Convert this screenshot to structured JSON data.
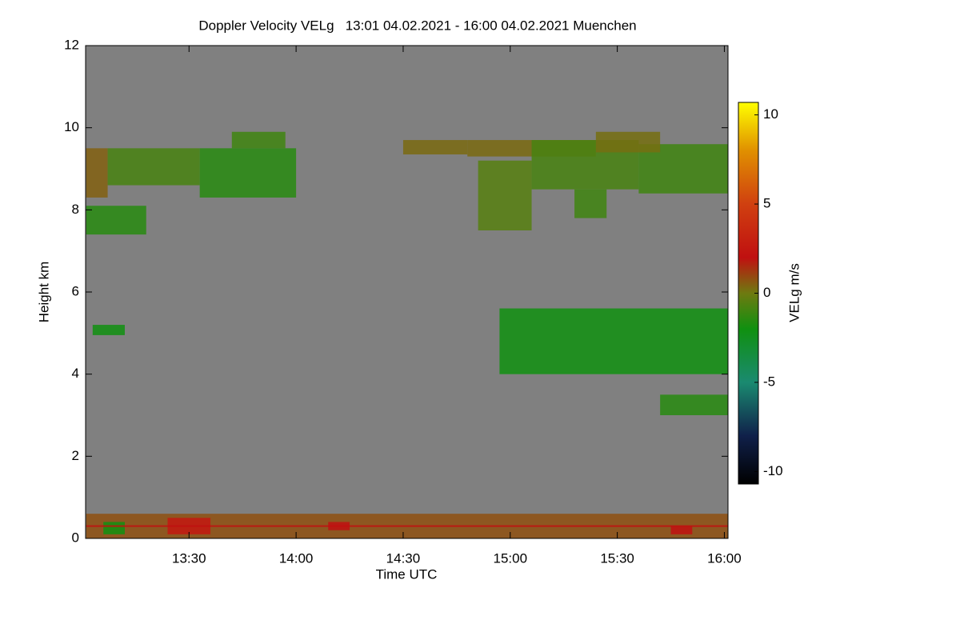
{
  "chart_data": {
    "type": "heatmap",
    "title": "Doppler Velocity VELg   13:01 04.02.2021 - 16:00 04.02.2021 Muenchen",
    "xlabel": "Time UTC",
    "ylabel": "Height km",
    "colorbar_label": "VELg m/s",
    "background": "#808080",
    "xlim": [
      13.017,
      16.017
    ],
    "xticks": [
      {
        "value": 13.5,
        "label": "13:30"
      },
      {
        "value": 14,
        "label": "14:00"
      },
      {
        "value": 14.5,
        "label": "14:30"
      },
      {
        "value": 15,
        "label": "15:00"
      },
      {
        "value": 15.5,
        "label": "15:30"
      },
      {
        "value": 16,
        "label": "16:00"
      }
    ],
    "ylim": [
      0,
      12
    ],
    "yticks": [
      0,
      2,
      4,
      6,
      8,
      10,
      12
    ],
    "clim": [
      -10.7,
      10.7
    ],
    "cticks": [
      -10,
      -5,
      0,
      5,
      10
    ],
    "colormap": [
      {
        "value": -10.7,
        "color": "#000000"
      },
      {
        "value": -8,
        "color": "#10204a"
      },
      {
        "value": -5,
        "color": "#1a8a70"
      },
      {
        "value": -2,
        "color": "#109010"
      },
      {
        "value": 0,
        "color": "#6e7a10"
      },
      {
        "value": 2,
        "color": "#c01010"
      },
      {
        "value": 5,
        "color": "#d04010"
      },
      {
        "value": 8,
        "color": "#e09000"
      },
      {
        "value": 10.7,
        "color": "#ffff00"
      }
    ],
    "cells": [
      [
        13.02,
        13.3,
        7.4,
        8.1,
        -1.5
      ],
      [
        13.02,
        13.12,
        8.3,
        9.5,
        0.5
      ],
      [
        13.12,
        13.55,
        8.6,
        9.5,
        -0.8
      ],
      [
        13.55,
        14.0,
        8.3,
        9.5,
        -1.5
      ],
      [
        13.7,
        13.95,
        9.5,
        9.9,
        -1
      ],
      [
        14.5,
        14.8,
        9.35,
        9.7,
        0.3
      ],
      [
        14.8,
        15.4,
        9.3,
        9.7,
        0.3
      ],
      [
        14.85,
        15.1,
        7.5,
        9.2,
        -0.5
      ],
      [
        15.1,
        15.6,
        8.5,
        9.7,
        -0.8
      ],
      [
        15.3,
        15.45,
        7.8,
        8.5,
        -1
      ],
      [
        15.6,
        16.017,
        8.4,
        9.6,
        -1
      ],
      [
        15.4,
        15.7,
        9.4,
        9.9,
        0.2
      ],
      [
        14.95,
        16.017,
        4.0,
        5.6,
        -2
      ],
      [
        15.7,
        16.017,
        3.0,
        3.5,
        -1.5
      ],
      [
        13.05,
        13.2,
        4.95,
        5.2,
        -2
      ],
      [
        13.02,
        16.017,
        0.0,
        0.6,
        0.8
      ],
      [
        13.4,
        13.6,
        0.1,
        0.5,
        2.5
      ],
      [
        14.15,
        14.25,
        0.2,
        0.4,
        2
      ],
      [
        13.1,
        13.2,
        0.1,
        0.4,
        -2
      ],
      [
        15.75,
        15.85,
        0.1,
        0.3,
        2
      ],
      [
        13.02,
        16.017,
        0.28,
        0.32,
        2
      ]
    ]
  }
}
